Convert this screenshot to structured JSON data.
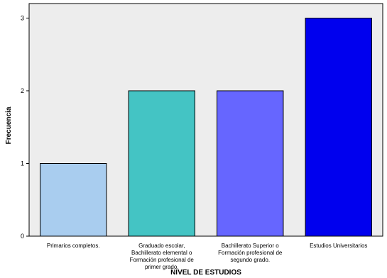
{
  "chart_data": {
    "type": "bar",
    "categories": [
      [
        "Primarios completos."
      ],
      [
        "Graduado escolar,",
        "Bachillerato elemental o",
        "Formación profesional de",
        "primer grado."
      ],
      [
        "Bachillerato Superior o",
        "Formación profesional  de",
        "segundo grado."
      ],
      [
        "Estudios Universitarios"
      ]
    ],
    "values": [
      1,
      2,
      2,
      3
    ],
    "bar_colors": [
      "#a9cdef",
      "#44c4c4",
      "#6666ff",
      "#0000ee"
    ],
    "plot_background": "#ededed",
    "xlabel": "NIVEL DE ESTUDIOS",
    "ylabel": "Frecuencia",
    "ylim": [
      0,
      3.2
    ],
    "yticks": [
      0,
      1,
      2,
      3
    ],
    "grid": false,
    "legend": "none"
  }
}
